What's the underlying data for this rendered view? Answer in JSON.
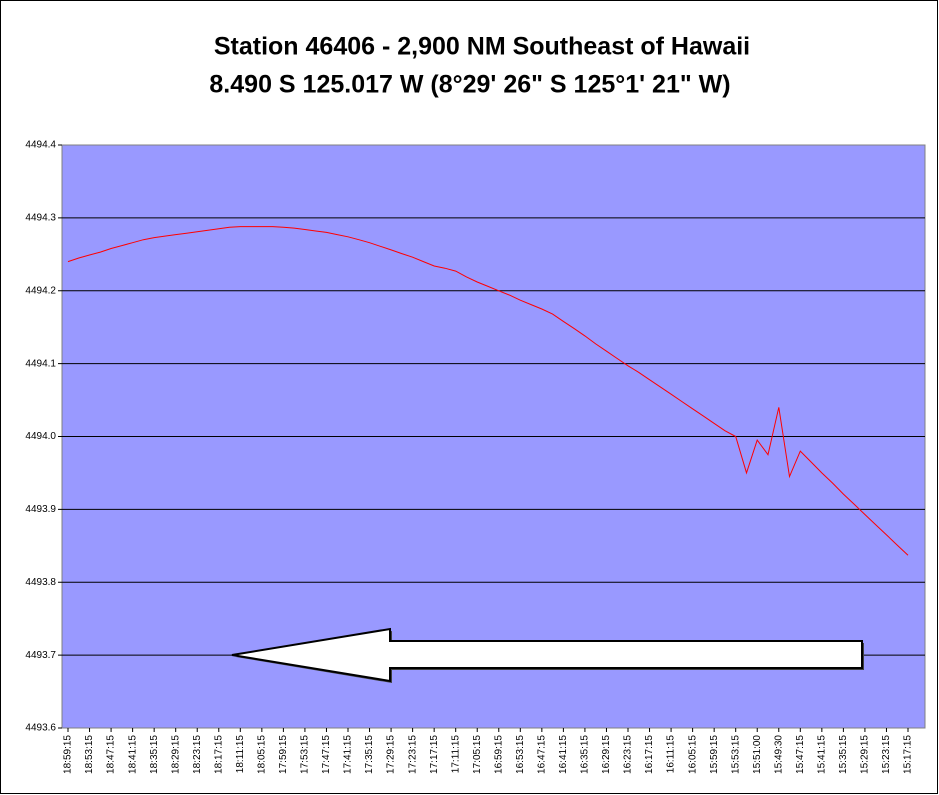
{
  "chart_data": {
    "type": "line",
    "title": "Station 46406 - 2,900 NM Southeast of Hawaii",
    "subtitle": "8.490 S 125.017 W (8°29' 26\" S 125°1' 21\" W)",
    "categories": [
      "18:59:15",
      null,
      "18:53:15",
      null,
      "18:47:15",
      null,
      "18:41:15",
      null,
      "18:35:15",
      null,
      "18:29:15",
      null,
      "18:23:15",
      null,
      "18:17:15",
      null,
      "18:11:15",
      null,
      "18:05:15",
      null,
      "17:59:15",
      null,
      "17:53:15",
      null,
      "17:47:15",
      null,
      "17:41:15",
      null,
      "17:35:15",
      null,
      "17:29:15",
      null,
      "17:23:15",
      null,
      "17:17:15",
      null,
      "17:11:15",
      null,
      "17:05:15",
      null,
      "16:59:15",
      null,
      "16:53:15",
      null,
      "16:47:15",
      null,
      "16:41:15",
      null,
      "16:35:15",
      null,
      "16:29:15",
      null,
      "16:23:15",
      null,
      "16:17:15",
      null,
      "16:11:15",
      null,
      "16:05:15",
      null,
      "15:59:15",
      null,
      "15:53:15",
      null,
      "15:51:00",
      null,
      "15:49:30",
      null,
      "15:47:15",
      null,
      "15:41:15",
      null,
      "15:35:15",
      null,
      "15:29:15",
      null,
      "15:23:15",
      null,
      "15:17:15"
    ],
    "series": [
      {
        "color": "#ff0000",
        "values": [
          4494.24,
          4494.245,
          4494.249,
          4494.253,
          4494.258,
          4494.262,
          4494.266,
          4494.27,
          4494.273,
          4494.275,
          4494.277,
          4494.279,
          4494.281,
          4494.283,
          4494.285,
          4494.287,
          4494.288,
          4494.288,
          4494.288,
          4494.288,
          4494.287,
          4494.286,
          4494.284,
          4494.282,
          4494.28,
          4494.277,
          4494.274,
          4494.27,
          4494.266,
          4494.261,
          4494.256,
          4494.251,
          4494.246,
          4494.24,
          4494.234,
          4494.231,
          4494.227,
          4494.219,
          4494.212,
          4494.206,
          4494.2,
          4494.194,
          4494.187,
          4494.181,
          4494.175,
          4494.168,
          4494.158,
          4494.148,
          4494.138,
          4494.127,
          4494.117,
          4494.107,
          4494.097,
          4494.088,
          4494.078,
          4494.068,
          4494.058,
          4494.048,
          4494.038,
          4494.028,
          4494.018,
          4494.008,
          4494.0,
          4493.95,
          4493.995,
          4493.975,
          4494.04,
          4493.945,
          4493.98,
          4493.965,
          4493.95,
          4493.936,
          4493.921,
          4493.907,
          4493.893,
          4493.879,
          4493.865,
          4493.851,
          4493.837
        ]
      }
    ],
    "ylim": [
      4493.6,
      4494.4
    ],
    "yticks": [
      4493.6,
      4493.7,
      4493.8,
      4493.9,
      {
        "value": 4494,
        "label": "4494.0"
      },
      4494.1,
      4494.2,
      4494.3,
      4494.4
    ],
    "grid": true,
    "plot_color": "#9999ff"
  }
}
